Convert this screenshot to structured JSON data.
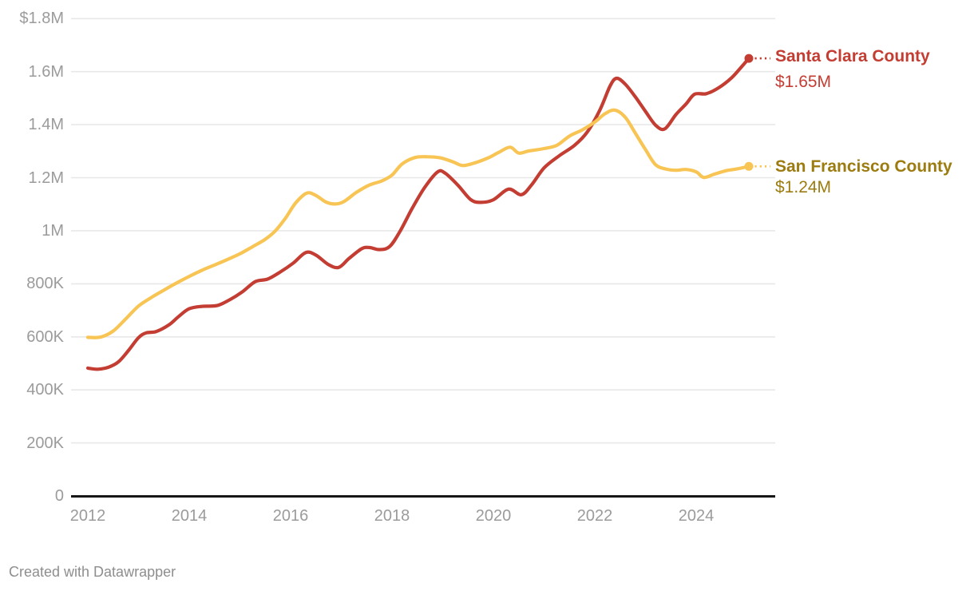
{
  "footer": {
    "credit": "Created with Datawrapper"
  },
  "chart_data": {
    "type": "line",
    "title": "",
    "grid": true,
    "legend_position": "right-of-line-ends",
    "x_axis": {
      "tick_labels": [
        "2012",
        "2014",
        "2016",
        "2018",
        "2020",
        "2022",
        "2024"
      ],
      "tick_years": [
        2012,
        2014,
        2016,
        2018,
        2020,
        2022,
        2024
      ],
      "range": [
        2012,
        2025.04
      ]
    },
    "y_axis": {
      "unit": "USD",
      "range": [
        0,
        1800000
      ],
      "ticks": [
        {
          "label": "$1.8M",
          "value": 1800
        },
        {
          "label": "1.6M",
          "value": 1600
        },
        {
          "label": "1.4M",
          "value": 1400
        },
        {
          "label": "1.2M",
          "value": 1200
        },
        {
          "label": "1M",
          "value": 1000
        },
        {
          "label": "800K",
          "value": 800
        },
        {
          "label": "600K",
          "value": 600
        },
        {
          "label": "400K",
          "value": 400
        },
        {
          "label": "200K",
          "value": 200
        },
        {
          "label": "0",
          "value": 0
        }
      ]
    },
    "series": [
      {
        "name": "Santa Clara County",
        "end_label": "$1.65M",
        "end_value_thousands": 1650,
        "color": "#c33d33",
        "label_color": "#c33d33",
        "points_year_valueK": [
          [
            2012.0,
            482
          ],
          [
            2012.2,
            478
          ],
          [
            2012.4,
            485
          ],
          [
            2012.6,
            505
          ],
          [
            2012.8,
            548
          ],
          [
            2013.0,
            597
          ],
          [
            2013.15,
            615
          ],
          [
            2013.35,
            620
          ],
          [
            2013.6,
            645
          ],
          [
            2013.8,
            678
          ],
          [
            2014.0,
            706
          ],
          [
            2014.25,
            715
          ],
          [
            2014.55,
            718
          ],
          [
            2014.8,
            740
          ],
          [
            2015.05,
            770
          ],
          [
            2015.3,
            808
          ],
          [
            2015.55,
            818
          ],
          [
            2015.8,
            845
          ],
          [
            2016.05,
            878
          ],
          [
            2016.3,
            918
          ],
          [
            2016.5,
            908
          ],
          [
            2016.75,
            872
          ],
          [
            2016.95,
            862
          ],
          [
            2017.15,
            895
          ],
          [
            2017.4,
            932
          ],
          [
            2017.55,
            937
          ],
          [
            2017.75,
            929
          ],
          [
            2017.95,
            940
          ],
          [
            2018.15,
            995
          ],
          [
            2018.4,
            1085
          ],
          [
            2018.65,
            1165
          ],
          [
            2018.9,
            1222
          ],
          [
            2019.05,
            1217
          ],
          [
            2019.3,
            1172
          ],
          [
            2019.55,
            1118
          ],
          [
            2019.75,
            1107
          ],
          [
            2020.0,
            1117
          ],
          [
            2020.3,
            1157
          ],
          [
            2020.55,
            1136
          ],
          [
            2020.75,
            1172
          ],
          [
            2021.0,
            1237
          ],
          [
            2021.3,
            1283
          ],
          [
            2021.6,
            1322
          ],
          [
            2021.85,
            1372
          ],
          [
            2022.1,
            1455
          ],
          [
            2022.3,
            1545
          ],
          [
            2022.43,
            1575
          ],
          [
            2022.6,
            1553
          ],
          [
            2022.8,
            1505
          ],
          [
            2023.0,
            1450
          ],
          [
            2023.2,
            1398
          ],
          [
            2023.38,
            1384
          ],
          [
            2023.6,
            1438
          ],
          [
            2023.8,
            1478
          ],
          [
            2023.97,
            1515
          ],
          [
            2024.2,
            1517
          ],
          [
            2024.45,
            1540
          ],
          [
            2024.7,
            1577
          ],
          [
            2024.88,
            1615
          ],
          [
            2025.04,
            1650
          ]
        ]
      },
      {
        "name": "San Francisco County",
        "end_label": "$1.24M",
        "end_value_thousands": 1240,
        "color": "#f8c554",
        "label_color": "#9c7c10",
        "points_year_valueK": [
          [
            2012.0,
            598
          ],
          [
            2012.25,
            599
          ],
          [
            2012.5,
            622
          ],
          [
            2012.75,
            668
          ],
          [
            2013.0,
            716
          ],
          [
            2013.25,
            748
          ],
          [
            2013.5,
            776
          ],
          [
            2013.75,
            803
          ],
          [
            2014.0,
            828
          ],
          [
            2014.25,
            851
          ],
          [
            2014.5,
            871
          ],
          [
            2014.75,
            891
          ],
          [
            2015.0,
            913
          ],
          [
            2015.25,
            940
          ],
          [
            2015.5,
            968
          ],
          [
            2015.7,
            1000
          ],
          [
            2015.9,
            1048
          ],
          [
            2016.1,
            1105
          ],
          [
            2016.32,
            1142
          ],
          [
            2016.5,
            1133
          ],
          [
            2016.7,
            1108
          ],
          [
            2016.88,
            1101
          ],
          [
            2017.05,
            1110
          ],
          [
            2017.3,
            1145
          ],
          [
            2017.55,
            1172
          ],
          [
            2017.8,
            1188
          ],
          [
            2018.0,
            1210
          ],
          [
            2018.2,
            1252
          ],
          [
            2018.45,
            1276
          ],
          [
            2018.7,
            1279
          ],
          [
            2018.95,
            1275
          ],
          [
            2019.2,
            1260
          ],
          [
            2019.4,
            1246
          ],
          [
            2019.65,
            1257
          ],
          [
            2019.9,
            1275
          ],
          [
            2020.1,
            1295
          ],
          [
            2020.33,
            1315
          ],
          [
            2020.5,
            1293
          ],
          [
            2020.7,
            1301
          ],
          [
            2021.0,
            1310
          ],
          [
            2021.25,
            1322
          ],
          [
            2021.5,
            1357
          ],
          [
            2021.75,
            1380
          ],
          [
            2022.0,
            1410
          ],
          [
            2022.2,
            1441
          ],
          [
            2022.4,
            1455
          ],
          [
            2022.6,
            1428
          ],
          [
            2022.8,
            1368
          ],
          [
            2023.0,
            1306
          ],
          [
            2023.2,
            1249
          ],
          [
            2023.4,
            1233
          ],
          [
            2023.6,
            1228
          ],
          [
            2023.8,
            1231
          ],
          [
            2024.0,
            1222
          ],
          [
            2024.15,
            1201
          ],
          [
            2024.35,
            1213
          ],
          [
            2024.6,
            1227
          ],
          [
            2024.8,
            1233
          ],
          [
            2025.04,
            1243
          ]
        ]
      }
    ]
  }
}
